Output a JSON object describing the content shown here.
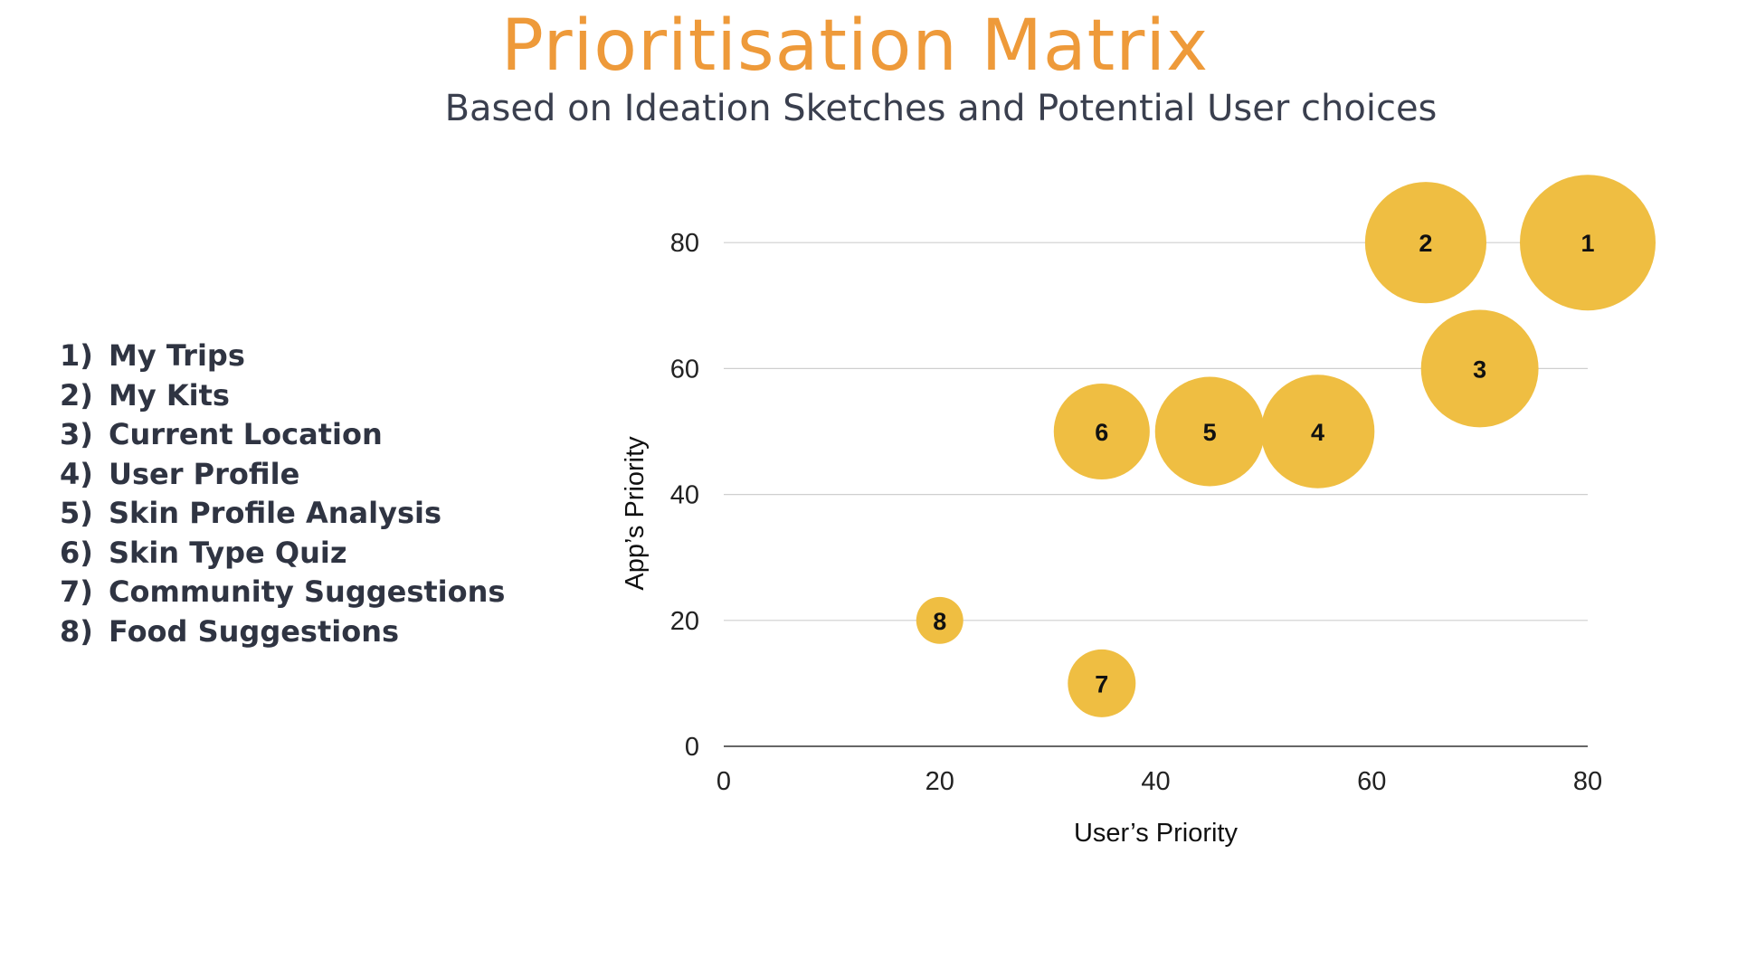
{
  "header": {
    "title": "Prioritisation Matrix",
    "subtitle": "Based on Ideation Sketches and Potential User choices"
  },
  "features": [
    {
      "num": "1)",
      "label": "My Trips"
    },
    {
      "num": "2)",
      "label": "My Kits"
    },
    {
      "num": "3)",
      "label": "Current Location"
    },
    {
      "num": "4)",
      "label": "User Profile"
    },
    {
      "num": "5)",
      "label": "Skin Profile Analysis"
    },
    {
      "num": "6)",
      "label": "Skin Type Quiz"
    },
    {
      "num": "7)",
      "label": "Community Suggestions"
    },
    {
      "num": "8)",
      "label": "Food Suggestions"
    }
  ],
  "chart_data": {
    "type": "scatter",
    "subtype": "bubble",
    "title": "",
    "xlabel": "User’s Priority",
    "ylabel": "App’s Priority",
    "xlim": [
      0,
      80
    ],
    "ylim": [
      0,
      90
    ],
    "xticks": [
      0,
      20,
      40,
      60,
      80
    ],
    "yticks": [
      0,
      20,
      40,
      60,
      80
    ],
    "grid": "horizontal",
    "legend": "none",
    "bubble_color": "#EFBE42",
    "points": [
      {
        "label": "1",
        "x": 80,
        "y": 80,
        "size": 100
      },
      {
        "label": "2",
        "x": 65,
        "y": 80,
        "size": 80
      },
      {
        "label": "3",
        "x": 70,
        "y": 60,
        "size": 75
      },
      {
        "label": "4",
        "x": 55,
        "y": 50,
        "size": 70
      },
      {
        "label": "5",
        "x": 45,
        "y": 50,
        "size": 65
      },
      {
        "label": "6",
        "x": 35,
        "y": 50,
        "size": 50
      },
      {
        "label": "7",
        "x": 35,
        "y": 10,
        "size": 25
      },
      {
        "label": "8",
        "x": 20,
        "y": 20,
        "size": 12
      }
    ]
  }
}
